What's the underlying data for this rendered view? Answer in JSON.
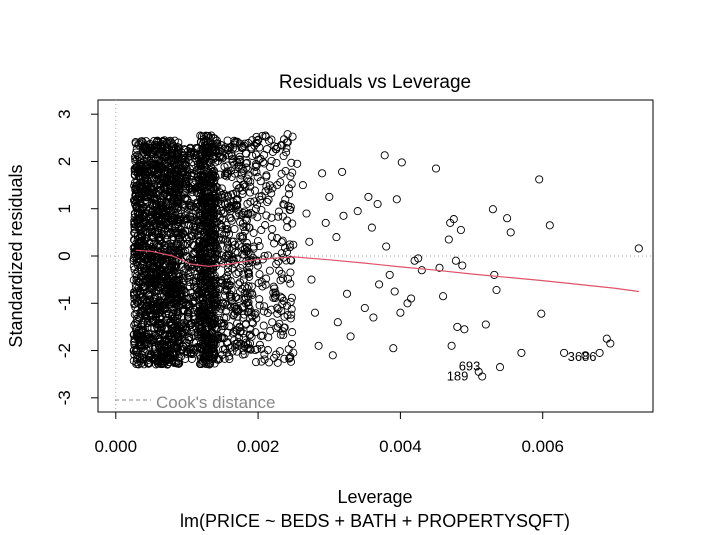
{
  "chart_data": {
    "type": "scatter",
    "title": "Residuals vs Leverage",
    "xlabel": "Leverage",
    "ylabel": "Standardized residuals",
    "subtitle": "lm(PRICE ~ BEDS + BATH + PROPERTYSQFT)",
    "xlim": [
      -0.00025,
      0.00755
    ],
    "ylim": [
      -3.3,
      3.3
    ],
    "x_ticks": [
      0.0,
      0.002,
      0.004,
      0.006
    ],
    "x_tick_labels": [
      "0.000",
      "0.002",
      "0.004",
      "0.006"
    ],
    "y_ticks": [
      -3,
      -2,
      -1,
      0,
      1,
      2,
      3
    ],
    "y_tick_labels": [
      "-3",
      "-2",
      "-1",
      "0",
      "1",
      "2",
      "3"
    ],
    "grid": false,
    "reference_lines": [
      {
        "axis": "y",
        "value": 0,
        "style": "dotted"
      },
      {
        "axis": "x",
        "value": 0,
        "style": "dotted"
      }
    ],
    "colors": {
      "points": "#000000",
      "smooth": "#DF536B",
      "reference": "#aaaaaa",
      "cooks": "#888888"
    },
    "dense_clusters": [
      {
        "x_range": [
          0.00025,
          0.0009
        ],
        "y_range": [
          -2.3,
          2.45
        ],
        "count": 1500
      },
      {
        "x_range": [
          0.0009,
          0.00118
        ],
        "y_range": [
          -2.2,
          2.3
        ],
        "count": 350
      },
      {
        "x_range": [
          0.00118,
          0.0014
        ],
        "y_range": [
          -2.3,
          2.55
        ],
        "count": 650
      },
      {
        "x_range": [
          0.0014,
          0.0019
        ],
        "y_range": [
          -2.2,
          2.45
        ],
        "count": 400
      },
      {
        "x_range": [
          0.0019,
          0.0025
        ],
        "y_range": [
          -2.3,
          2.6
        ],
        "count": 220
      }
    ],
    "points": [
      [
        0.00255,
        1.95
      ],
      [
        0.00263,
        1.5
      ],
      [
        0.00268,
        0.9
      ],
      [
        0.00272,
        0.3
      ],
      [
        0.00275,
        -0.5
      ],
      [
        0.0028,
        -1.2
      ],
      [
        0.00285,
        -1.9
      ],
      [
        0.0029,
        1.75
      ],
      [
        0.00295,
        0.7
      ],
      [
        0.003,
        1.25
      ],
      [
        0.00305,
        -2.1
      ],
      [
        0.0031,
        0.4
      ],
      [
        0.00312,
        -1.4
      ],
      [
        0.00318,
        1.78
      ],
      [
        0.0032,
        0.85
      ],
      [
        0.00325,
        -0.8
      ],
      [
        0.0033,
        -1.7
      ],
      [
        0.0034,
        0.95
      ],
      [
        0.0035,
        -1.1
      ],
      [
        0.00355,
        1.25
      ],
      [
        0.0036,
        0.6
      ],
      [
        0.00362,
        -1.3
      ],
      [
        0.00368,
        1.1
      ],
      [
        0.0037,
        -0.6
      ],
      [
        0.00378,
        2.13
      ],
      [
        0.0038,
        0.2
      ],
      [
        0.00385,
        -0.4
      ],
      [
        0.0039,
        -1.95
      ],
      [
        0.00392,
        -0.75
      ],
      [
        0.00395,
        1.2
      ],
      [
        0.004,
        -1.2
      ],
      [
        0.00402,
        1.98
      ],
      [
        0.0041,
        -1.0
      ],
      [
        0.00415,
        -0.9
      ],
      [
        0.0042,
        -0.1
      ],
      [
        0.00425,
        -0.05
      ],
      [
        0.0043,
        -0.3
      ],
      [
        0.0045,
        1.85
      ],
      [
        0.00455,
        -0.25
      ],
      [
        0.0046,
        -0.85
      ],
      [
        0.00468,
        0.35
      ],
      [
        0.0047,
        0.7
      ],
      [
        0.00472,
        -1.9
      ],
      [
        0.00475,
        0.78
      ],
      [
        0.00478,
        -0.1
      ],
      [
        0.0048,
        -1.5
      ],
      [
        0.00485,
        0.55
      ],
      [
        0.00487,
        -0.2
      ],
      [
        0.0049,
        -1.55
      ],
      [
        0.0051,
        -2.45
      ],
      [
        0.00515,
        -2.55
      ],
      [
        0.0052,
        -1.45
      ],
      [
        0.0053,
        0.99
      ],
      [
        0.00532,
        -0.4
      ],
      [
        0.00535,
        -0.72
      ],
      [
        0.0054,
        -2.35
      ],
      [
        0.0055,
        0.8
      ],
      [
        0.00555,
        0.5
      ],
      [
        0.0057,
        -2.05
      ],
      [
        0.00595,
        1.62
      ],
      [
        0.00598,
        -1.22
      ],
      [
        0.0061,
        0.65
      ],
      [
        0.0063,
        -2.05
      ],
      [
        0.0066,
        -2.1
      ],
      [
        0.0068,
        -2.05
      ],
      [
        0.0069,
        -1.75
      ],
      [
        0.00695,
        -1.85
      ],
      [
        0.00735,
        0.16
      ]
    ],
    "smooth_line": {
      "x": [
        0.00028,
        0.0005,
        0.0008,
        0.00105,
        0.0013,
        0.0016,
        0.002,
        0.0025,
        0.003,
        0.0035,
        0.004,
        0.0045,
        0.005,
        0.0055,
        0.006,
        0.0065,
        0.007,
        0.00735
      ],
      "y": [
        0.12,
        0.1,
        0.0,
        -0.17,
        -0.22,
        -0.17,
        -0.07,
        -0.02,
        -0.08,
        -0.15,
        -0.23,
        -0.3,
        -0.38,
        -0.45,
        -0.52,
        -0.6,
        -0.68,
        -0.75
      ]
    },
    "point_labels": [
      {
        "text": "3686",
        "x": 0.00635,
        "y": -2.22
      },
      {
        "text": "693",
        "x": 0.00482,
        "y": -2.42
      },
      {
        "text": "189",
        "x": 0.00465,
        "y": -2.63
      }
    ],
    "legend": {
      "text": "Cook's distance",
      "placement": "bottom-left"
    }
  }
}
